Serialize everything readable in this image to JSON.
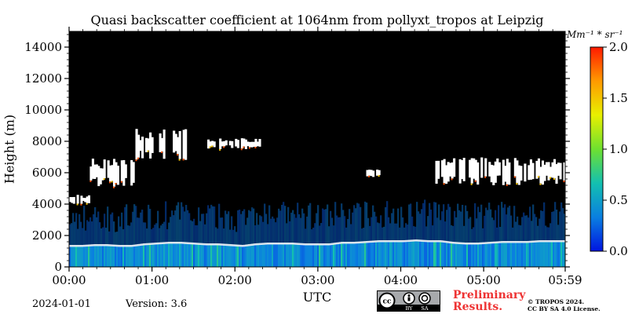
{
  "chart_data": {
    "type": "heatmap",
    "title": "Quasi backscatter coefficient at 1064nm from pollyxt_tropos at Leipzig",
    "ylabel": "Height (m)",
    "xlabel": "UTC",
    "ylim": [
      0,
      15000
    ],
    "xlim": [
      "00:00",
      "05:59"
    ],
    "x_ticks": [
      "00:00",
      "01:00",
      "02:00",
      "03:00",
      "04:00",
      "05:00",
      "05:59"
    ],
    "y_ticks": [
      "0",
      "2000",
      "4000",
      "6000",
      "8000",
      "10000",
      "12000",
      "14000"
    ],
    "colorbar": {
      "label": "Mm⁻¹ * sr⁻¹",
      "ticks": [
        "0.0",
        "0.5",
        "1.0",
        "1.5",
        "2.0"
      ],
      "range": [
        0,
        2.0
      ],
      "colormap": [
        "#0015e0",
        "#0a7fe0",
        "#13c0b0",
        "#6ee030",
        "#e8f000",
        "#ff9a00",
        "#ff1a00"
      ]
    },
    "background_color": "#000000",
    "boundary_layer_top_m": [
      1300,
      1300,
      1350,
      1350,
      1300,
      1300,
      1400,
      1450,
      1500,
      1500,
      1450,
      1400,
      1400,
      1350,
      1300,
      1400,
      1450,
      1450,
      1450,
      1400,
      1400,
      1400,
      1500,
      1500,
      1550,
      1600,
      1600,
      1600,
      1650,
      1600,
      1600,
      1500,
      1450,
      1450,
      1500,
      1550,
      1550,
      1550,
      1600,
      1600,
      1600
    ],
    "cloud_layers": [
      {
        "start": "00:00",
        "end": "00:15",
        "base_m": 4000,
        "top_m": 4600
      },
      {
        "start": "00:15",
        "end": "00:50",
        "base_m": 5100,
        "top_m": 6900
      },
      {
        "start": "00:48",
        "end": "01:25",
        "base_m": 6700,
        "top_m": 8800
      },
      {
        "start": "01:40",
        "end": "02:20",
        "base_m": 7500,
        "top_m": 8200
      },
      {
        "start": "03:35",
        "end": "03:45",
        "base_m": 5700,
        "top_m": 6200
      },
      {
        "start": "04:25",
        "end": "05:59",
        "base_m": 5200,
        "top_m": 7000
      }
    ]
  },
  "footer": {
    "date": "2024-01-01",
    "version": "Version: 3.6",
    "preliminary": [
      "Preliminary",
      "Results."
    ],
    "copyright": [
      "© TROPOS 2024.",
      "CC BY SA 4.0 License."
    ],
    "badge_text": [
      "BY",
      "SA"
    ]
  }
}
